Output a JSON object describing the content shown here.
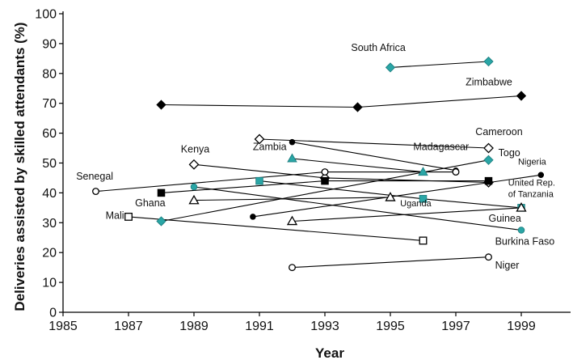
{
  "chart_data": {
    "type": "line",
    "title": "",
    "xlabel": "Year",
    "ylabel": "Deliveries assisted by skilled attendants (%)",
    "xlim": [
      1985,
      1999.8
    ],
    "ylim": [
      0,
      100
    ],
    "xticks": [
      "1985",
      "1987",
      "1989",
      "1991",
      "1993",
      "1995",
      "1997",
      "1999"
    ],
    "yticks": [
      "0",
      "10",
      "20",
      "30",
      "40",
      "50",
      "60",
      "70",
      "80",
      "90",
      "100"
    ],
    "grid": false,
    "legend": "none",
    "colors": {
      "teal": "#2aa6a6",
      "black": "#000000",
      "white": "#ffffff"
    },
    "series": [
      {
        "name": "South Africa",
        "marker": "diamond-teal",
        "x": [
          1995,
          1998
        ],
        "y": [
          82,
          84
        ]
      },
      {
        "name": "Zimbabwe",
        "marker": "diamond-black",
        "x": [
          1988,
          1994,
          1999
        ],
        "y": [
          69.5,
          68.7,
          72.5
        ]
      },
      {
        "name": "Cameroon",
        "marker": "diamond-white",
        "x": [
          1991,
          1998
        ],
        "y": [
          58,
          55
        ]
      },
      {
        "name": "Madagascar",
        "marker": "circle-black",
        "x": [
          1992,
          1997
        ],
        "y": [
          57,
          47.5
        ]
      },
      {
        "name": "Zambia",
        "marker": "triangle-teal",
        "x": [
          1992,
          1996
        ],
        "y": [
          51.5,
          47
        ]
      },
      {
        "name": "Togo",
        "marker": "diamond-teal",
        "x": [
          1988,
          1998
        ],
        "y": [
          30.5,
          51
        ]
      },
      {
        "name": "Kenya",
        "marker": "diamond-white",
        "x": [
          1989,
          1993,
          1998
        ],
        "y": [
          49.5,
          45,
          43.5
        ]
      },
      {
        "name": "Nigeria",
        "marker": "circle-black",
        "x": [
          1990.8,
          1999.6
        ],
        "y": [
          32,
          46
        ]
      },
      {
        "name": "Senegal",
        "marker": "circle-white",
        "x": [
          1986,
          1993,
          1997
        ],
        "y": [
          40.5,
          47,
          47
        ]
      },
      {
        "name": "United Rep. of Tanzania",
        "marker": "square-black",
        "x": [
          1988,
          1993,
          1998
        ],
        "y": [
          40,
          44,
          44
        ]
      },
      {
        "name": "Ghana",
        "marker": "circle-teal",
        "x": [
          1989,
          1999
        ],
        "y": [
          42,
          27.5
        ]
      },
      {
        "name": "Uganda",
        "marker": "square-teal",
        "x": [
          1991,
          1996,
          1999
        ],
        "y": [
          44,
          38,
          35
        ]
      },
      {
        "name": "Guinea",
        "marker": "triangle-white",
        "x": [
          1989,
          1995
        ],
        "y": [
          37.5,
          38.5
        ]
      },
      {
        "name": "Burkina Faso",
        "marker": "triangle-white",
        "x": [
          1992,
          1999
        ],
        "y": [
          30.5,
          35
        ]
      },
      {
        "name": "Mali",
        "marker": "square-white",
        "x": [
          1987,
          1996
        ],
        "y": [
          32,
          24
        ]
      },
      {
        "name": "Niger",
        "marker": "circle-white",
        "x": [
          1992,
          1998
        ],
        "y": [
          15,
          18.5
        ]
      }
    ],
    "labels": [
      {
        "text": "South Africa",
        "x": 1993.8,
        "y": 87.5,
        "cls": ""
      },
      {
        "text": "Zimbabwe",
        "x": 1997.3,
        "y": 76,
        "cls": ""
      },
      {
        "text": "Cameroon",
        "x": 1997.6,
        "y": 59.3,
        "cls": ""
      },
      {
        "text": "Kenya",
        "x": 1988.6,
        "y": 53.5,
        "cls": ""
      },
      {
        "text": "Zambia",
        "x": 1990.8,
        "y": 54.3,
        "cls": ""
      },
      {
        "text": "Madagascar",
        "x": 1995.7,
        "y": 54.3,
        "cls": ""
      },
      {
        "text": "Togo",
        "x": 1998.3,
        "y": 52.3,
        "cls": ""
      },
      {
        "text": "Nigeria",
        "x": 1998.9,
        "y": 49.5,
        "cls": "small"
      },
      {
        "text": "Senegal",
        "x": 1985.4,
        "y": 44.5,
        "cls": ""
      },
      {
        "text": "United Rep.",
        "x": 1998.6,
        "y": 42.4,
        "cls": "small"
      },
      {
        "text": "of Tanzania",
        "x": 1998.6,
        "y": 38.6,
        "cls": "small"
      },
      {
        "text": "Ghana",
        "x": 1987.2,
        "y": 35.5,
        "cls": ""
      },
      {
        "text": "Uganda",
        "x": 1995.3,
        "y": 35.5,
        "cls": "small"
      },
      {
        "text": "Mali",
        "x": 1986.3,
        "y": 31.3,
        "cls": ""
      },
      {
        "text": "Guinea",
        "x": 1998.0,
        "y": 30.3,
        "cls": ""
      },
      {
        "text": "Burkina Faso",
        "x": 1998.2,
        "y": 22.6,
        "cls": ""
      },
      {
        "text": "Niger",
        "x": 1998.2,
        "y": 14.6,
        "cls": ""
      }
    ]
  }
}
